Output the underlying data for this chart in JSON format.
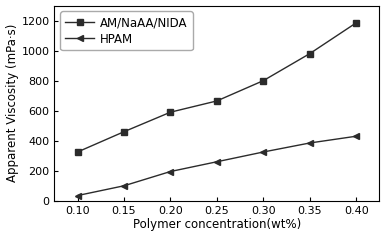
{
  "x": [
    0.1,
    0.15,
    0.2,
    0.25,
    0.3,
    0.35,
    0.4
  ],
  "series1_label": "AM/NaAA/NIDA",
  "series1_y": [
    325,
    460,
    590,
    665,
    800,
    980,
    1185
  ],
  "series2_label": "HPAM",
  "series2_y": [
    35,
    100,
    195,
    260,
    325,
    385,
    430
  ],
  "xlabel": "Polymer concentration(wt%)",
  "ylabel": "Apparent Viscosity (mPa·s)",
  "ylim": [
    0,
    1300
  ],
  "xlim": [
    0.075,
    0.425
  ],
  "yticks": [
    0,
    200,
    400,
    600,
    800,
    1000,
    1200
  ],
  "xticks": [
    0.1,
    0.15,
    0.2,
    0.25,
    0.3,
    0.35,
    0.4
  ],
  "line_color": "#2b2b2b",
  "marker1": "s",
  "marker2": "<",
  "markersize": 5,
  "linewidth": 1.0,
  "background_color": "#ffffff",
  "legend_fontsize": 8.5,
  "axis_fontsize": 8.5,
  "tick_fontsize": 8
}
